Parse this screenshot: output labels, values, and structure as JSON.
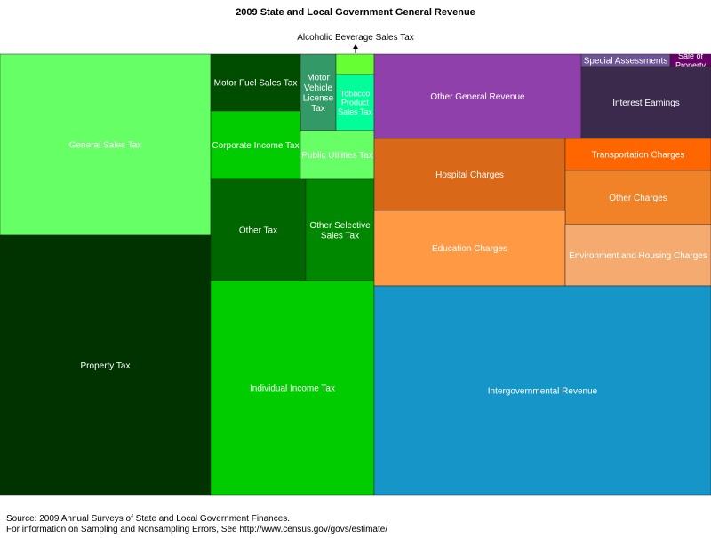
{
  "chart_data": {
    "type": "treemap",
    "title": "2009 State and Local Government General Revenue",
    "callout_label": "Alcoholic Beverage Sales Tax",
    "tiles": [
      {
        "label": "General Sales Tax",
        "color": "#66ff66",
        "text_color": "#ffffff"
      },
      {
        "label": "Property Tax",
        "color": "#003300",
        "text_color": "#ffffff"
      },
      {
        "label": "Motor Fuel Sales Tax",
        "color": "#004d00",
        "text_color": "#ffffff"
      },
      {
        "label": "Motor Vehicle License Tax",
        "color": "#339966",
        "text_color": "#ffffff"
      },
      {
        "label": "",
        "color": "#66ff33",
        "text_color": "#ffffff"
      },
      {
        "label": "Tobacco Product Sales Tax",
        "color": "#00ff99",
        "text_color": "#ffffff"
      },
      {
        "label": "Corporate Income Tax",
        "color": "#00cc00",
        "text_color": "#ffffff"
      },
      {
        "label": "Public Utilities Tax",
        "color": "#66ff66",
        "text_color": "#ffffff"
      },
      {
        "label": "Other Tax",
        "color": "#006600",
        "text_color": "#ffffff"
      },
      {
        "label": "Other Selective Sales Tax",
        "color": "#008800",
        "text_color": "#ffffff"
      },
      {
        "label": "Individual Income Tax",
        "color": "#00cc00",
        "text_color": "#ffffff"
      },
      {
        "label": "Other General Revenue",
        "color": "#9040aa",
        "text_color": "#ffffff"
      },
      {
        "label": "Special Assessments",
        "color": "#6e5496",
        "text_color": "#ffffff"
      },
      {
        "label": "Sale of Property",
        "color": "#660066",
        "text_color": "#ffffff"
      },
      {
        "label": "Interest Earnings",
        "color": "#3c2a4d",
        "text_color": "#ffffff"
      },
      {
        "label": "Hospital Charges",
        "color": "#d96818",
        "text_color": "#ffffff"
      },
      {
        "label": "Transportation Charges",
        "color": "#ff6600",
        "text_color": "#ffffff"
      },
      {
        "label": "Other Charges",
        "color": "#f08228",
        "text_color": "#ffffff"
      },
      {
        "label": "Education Charges",
        "color": "#ff9944",
        "text_color": "#ffffff"
      },
      {
        "label": "Environment and Housing Charges",
        "color": "#f5aa70",
        "text_color": "#ffffff"
      },
      {
        "label": "Intergovernmental Revenue",
        "color": "#1595c8",
        "text_color": "#ffffff"
      }
    ]
  },
  "footer": {
    "source": "Source: 2009 Annual Surveys of State and Local Government Finances.",
    "note": "For information on Sampling and Nonsampling Errors, See http://www.census.gov/govs/estimate/"
  }
}
